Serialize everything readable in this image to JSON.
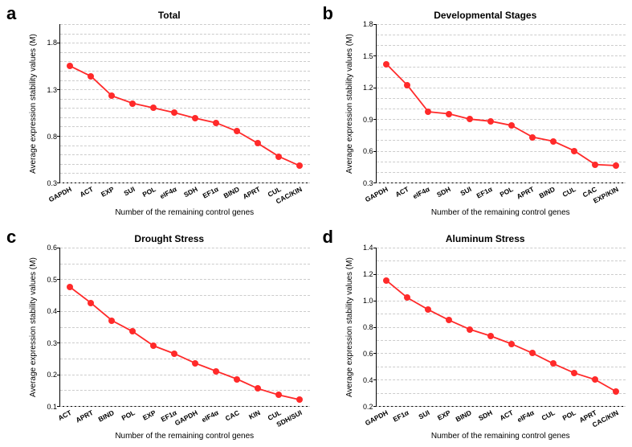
{
  "figure": {
    "background_color": "#ffffff",
    "grid_color": "#cccccc",
    "line_color": "#ff2a2a",
    "marker_color": "#ff2a2a",
    "marker_radius": 4,
    "line_width": 1.8,
    "panel_letter_fontsize": 22,
    "title_fontsize": 12,
    "axis_label_fontsize": 10,
    "tick_fontsize": 9,
    "xtick_rotation_deg": -28,
    "ylabel": "Average expression stability values (M)",
    "xlabel": "Number of the remaining control genes"
  },
  "panels": [
    {
      "letter": "a",
      "title": "Total",
      "ymin": 0.3,
      "ymax": 2.0,
      "ytick_step": 0.1,
      "ytick_label_every": 0.5,
      "type": "line",
      "categories": [
        "GAPDH",
        "ACT",
        "EXP",
        "SUI",
        "POL",
        "eIF4α",
        "SDH",
        "EF1α",
        "BIND",
        "APRT",
        "CUL",
        "CAC/KIN"
      ],
      "values": [
        1.55,
        1.44,
        1.23,
        1.15,
        1.1,
        1.05,
        0.99,
        0.94,
        0.85,
        0.72,
        0.58,
        0.48
      ]
    },
    {
      "letter": "b",
      "title": "Developmental Stages",
      "ymin": 0.3,
      "ymax": 1.8,
      "ytick_step": 0.1,
      "ytick_label_every": 0.3,
      "type": "line",
      "categories": [
        "GAPDH",
        "ACT",
        "eIF4α",
        "SDH",
        "SUI",
        "EF1α",
        "POL",
        "APRT",
        "BIND",
        "CUL",
        "CAC",
        "EXP/KIN"
      ],
      "values": [
        1.42,
        1.22,
        0.97,
        0.95,
        0.9,
        0.88,
        0.84,
        0.73,
        0.69,
        0.6,
        0.47,
        0.46
      ]
    },
    {
      "letter": "c",
      "title": "Drought Stress",
      "ymin": 0.1,
      "ymax": 0.6,
      "ytick_step": 0.05,
      "ytick_label_every": 0.1,
      "type": "line",
      "categories": [
        "ACT",
        "APRT",
        "BIND",
        "POL",
        "EXP",
        "EF1α",
        "GAPDH",
        "eIF4α",
        "CAC",
        "KIN",
        "CUL",
        "SDH/SUI"
      ],
      "values": [
        0.475,
        0.425,
        0.37,
        0.335,
        0.29,
        0.265,
        0.235,
        0.21,
        0.185,
        0.155,
        0.135,
        0.12
      ]
    },
    {
      "letter": "d",
      "title": "Aluminum Stress",
      "ymin": 0.2,
      "ymax": 1.4,
      "ytick_step": 0.1,
      "ytick_label_every": 0.2,
      "type": "line",
      "categories": [
        "GAPDH",
        "EF1α",
        "SUI",
        "EXP",
        "BIND",
        "SDH",
        "ACT",
        "eIF4α",
        "CUL",
        "POL",
        "APRT",
        "CAC/KIN"
      ],
      "values": [
        1.15,
        1.02,
        0.93,
        0.85,
        0.78,
        0.73,
        0.67,
        0.6,
        0.52,
        0.45,
        0.4,
        0.31
      ]
    }
  ]
}
